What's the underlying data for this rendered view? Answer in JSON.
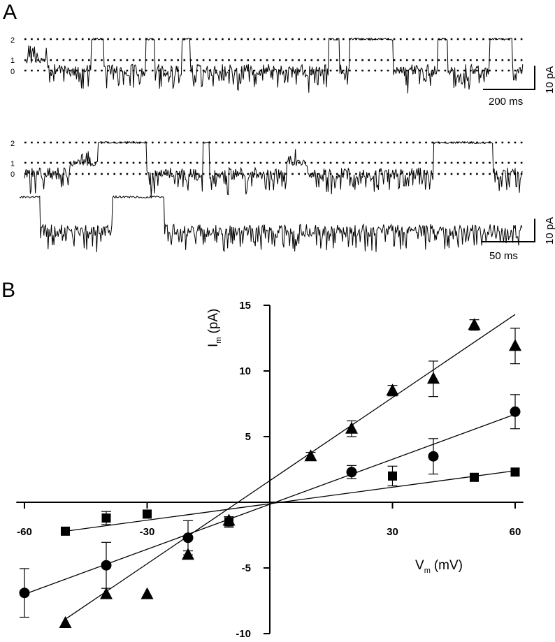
{
  "panel_a": {
    "label": "A",
    "trace_top": {
      "level_labels": [
        "2",
        "1",
        "0"
      ],
      "scalebar_current": "10 pA",
      "scalebar_time": "200 ms"
    },
    "trace_bottom": {
      "level_labels": [
        "2",
        "1",
        "0"
      ],
      "scalebar_current": "10 pA",
      "scalebar_time": "50 ms"
    }
  },
  "panel_b": {
    "label": "B"
  },
  "chart_data": {
    "type": "scatter",
    "xlabel_main": "V",
    "xlabel_sub": "m",
    "xlabel_unit": "(mV)",
    "ylabel_main": "I",
    "ylabel_sub": "m",
    "ylabel_unit": "(pA)",
    "xlim": [
      -60,
      60
    ],
    "ylim": [
      -10,
      15
    ],
    "x_ticks": [
      -60,
      -30,
      30,
      60
    ],
    "y_ticks": [
      -10,
      -5,
      5,
      10,
      15
    ],
    "series": [
      {
        "marker": "triangle",
        "points": [
          {
            "x": -50,
            "y": -9.2,
            "err": 0
          },
          {
            "x": -40,
            "y": -7.0,
            "err": 0
          },
          {
            "x": -30,
            "y": -7.0,
            "err": 0
          },
          {
            "x": -20,
            "y": -4.0,
            "err": 0.3
          },
          {
            "x": -10,
            "y": -1.4,
            "err": 0.3
          },
          {
            "x": 10,
            "y": 3.5,
            "err": 0.3
          },
          {
            "x": 20,
            "y": 5.6,
            "err": 0.6
          },
          {
            "x": 30,
            "y": 8.5,
            "err": 0.4
          },
          {
            "x": 40,
            "y": 9.4,
            "err": 1.35
          },
          {
            "x": 50,
            "y": 13.5,
            "err": 0.4
          },
          {
            "x": 60,
            "y": 11.9,
            "err": 1.35
          }
        ],
        "fit": [
          [
            -50,
            -8.9
          ],
          [
            60,
            14.3
          ]
        ]
      },
      {
        "marker": "circle",
        "points": [
          {
            "x": -60,
            "y": -6.9,
            "err": 1.85
          },
          {
            "x": -40,
            "y": -4.8,
            "err": 1.75
          },
          {
            "x": -20,
            "y": -2.7,
            "err": 1.3
          },
          {
            "x": 20,
            "y": 2.3,
            "err": 0.5
          },
          {
            "x": 40,
            "y": 3.5,
            "err": 1.35
          },
          {
            "x": 60,
            "y": 6.9,
            "err": 1.3
          }
        ],
        "fit": [
          [
            -60,
            -7.0
          ],
          [
            60,
            6.7
          ]
        ]
      },
      {
        "marker": "square",
        "points": [
          {
            "x": -50,
            "y": -2.2,
            "err": 0
          },
          {
            "x": -40,
            "y": -1.2,
            "err": 0.5
          },
          {
            "x": -30,
            "y": -0.9,
            "err": 0
          },
          {
            "x": -10,
            "y": -1.5,
            "err": 0.4
          },
          {
            "x": 30,
            "y": 2.0,
            "err": 0.75
          },
          {
            "x": 50,
            "y": 1.9,
            "err": 0
          },
          {
            "x": 60,
            "y": 2.3,
            "err": 0
          }
        ],
        "fit": [
          [
            -50,
            -2.2
          ],
          [
            60,
            2.4
          ]
        ]
      }
    ]
  }
}
